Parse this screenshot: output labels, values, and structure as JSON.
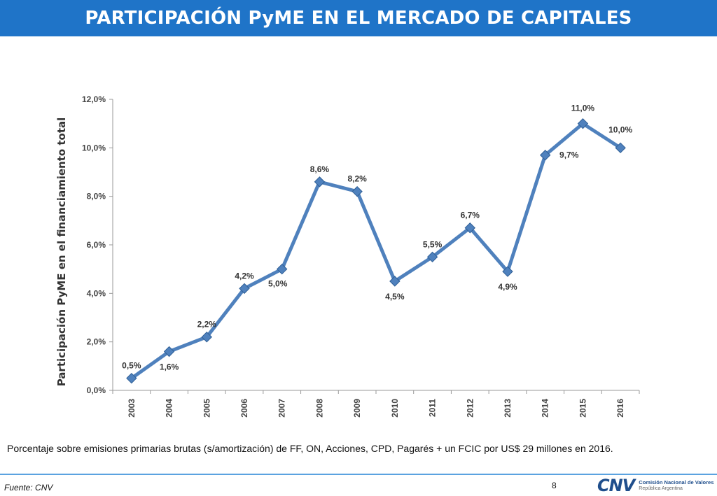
{
  "header": {
    "title": "PARTICIPACIÓN PyME EN EL MERCADO DE CAPITALES"
  },
  "chart_data": {
    "type": "line",
    "title": "",
    "xlabel": "",
    "ylabel": "Participación PyME en el financiamiento total",
    "categories": [
      "2003",
      "2004",
      "2005",
      "2006",
      "2007",
      "2008",
      "2009",
      "2010",
      "2011",
      "2012",
      "2013",
      "2014",
      "2015",
      "2016"
    ],
    "values": [
      0.5,
      1.6,
      2.2,
      4.2,
      5.0,
      8.6,
      8.2,
      4.5,
      5.5,
      6.7,
      4.9,
      9.7,
      11.0,
      10.0
    ],
    "data_labels": [
      "0,5%",
      "1,6%",
      "2,2%",
      "4,2%",
      "5,0%",
      "8,6%",
      "8,2%",
      "4,5%",
      "5,5%",
      "6,7%",
      "4,9%",
      "9,7%",
      "11,0%",
      "10,0%"
    ],
    "y_ticks": [
      0,
      2,
      4,
      6,
      8,
      10,
      12
    ],
    "y_tick_labels": [
      "0,0%",
      "2,0%",
      "4,0%",
      "6,0%",
      "8,0%",
      "10,0%",
      "12,0%"
    ],
    "ylim": [
      0,
      12
    ],
    "grid": false,
    "line_color": "#4f81bd"
  },
  "footnote": "Porcentaje sobre emisiones primarias brutas (s/amortización) de FF, ON, Acciones, CPD, Pagarés + un FCIC por US$ 29 millones en 2016.",
  "footer": {
    "source": "Fuente: CNV",
    "page_number": "8",
    "logo_mark": "CNV",
    "logo_line1": "Comisión Nacional de Valores",
    "logo_line2": "República Argentina"
  }
}
